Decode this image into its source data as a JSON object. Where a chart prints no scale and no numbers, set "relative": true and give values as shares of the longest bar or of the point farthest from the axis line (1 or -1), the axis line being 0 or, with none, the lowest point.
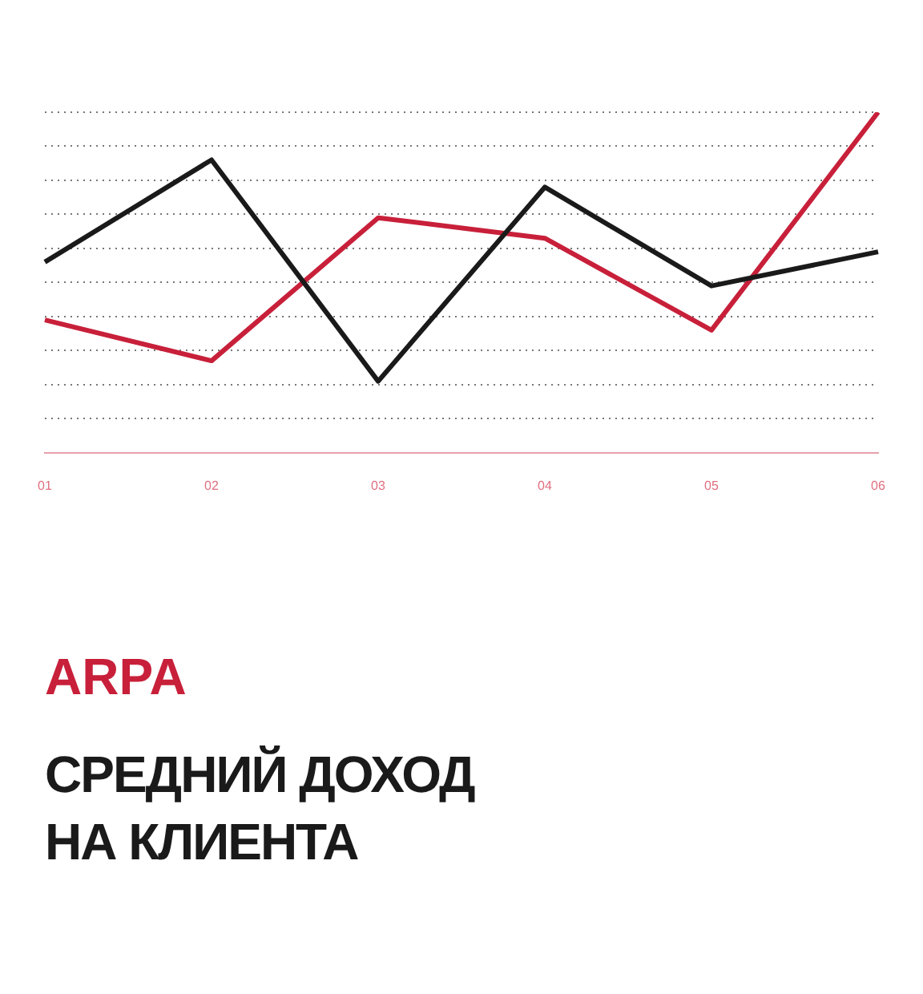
{
  "chart_data": {
    "type": "line",
    "title": "ARPA",
    "subtitle": "СРЕДНИЙ ДОХОД НА КЛИЕНТА",
    "relative": true,
    "grid": "y",
    "legend": false,
    "marker": "none",
    "line_style": "solid",
    "categories": [
      "01",
      "02",
      "03",
      "04",
      "05",
      "06"
    ],
    "series": [
      {
        "color": "#1a1a1a",
        "values": [
          0.56,
          0.86,
          0.21,
          0.78,
          0.49,
          0.59
        ]
      },
      {
        "color": "#c8203a",
        "values": [
          0.39,
          0.27,
          0.69,
          0.63,
          0.36,
          1
        ]
      }
    ]
  }
}
